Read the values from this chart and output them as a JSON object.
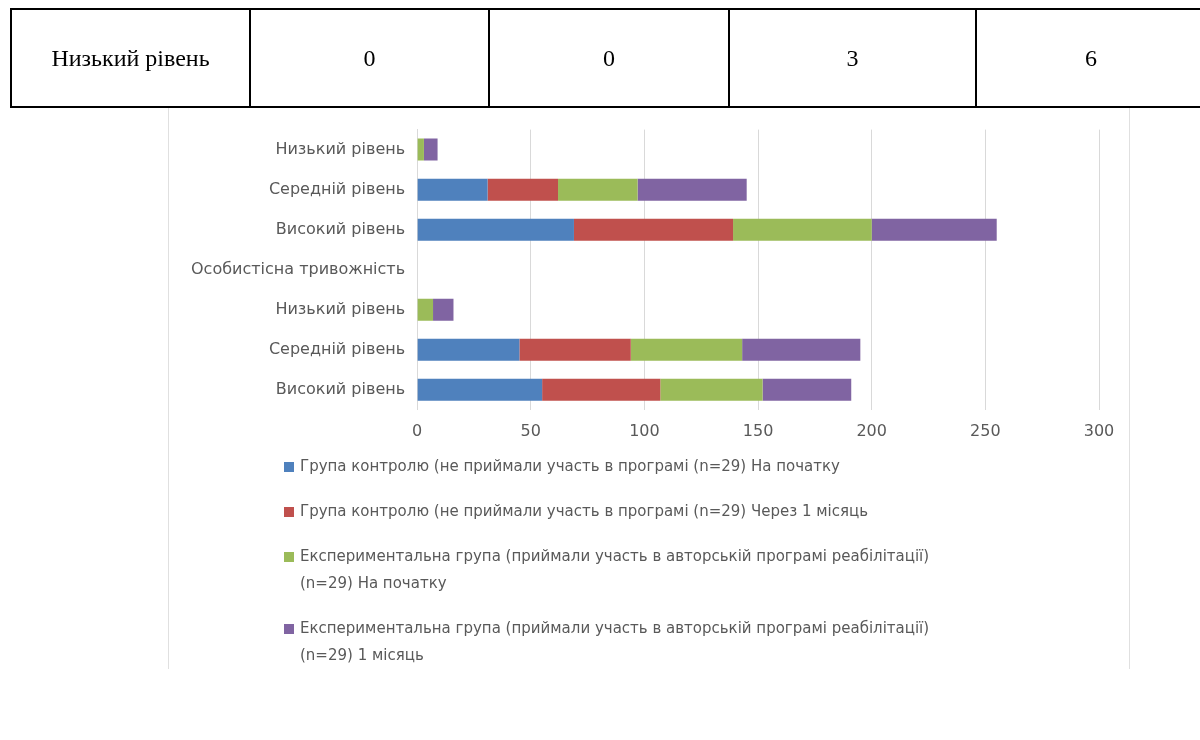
{
  "chart_data": {
    "type": "bar",
    "orientation": "horizontal",
    "stacked": true,
    "categories": [
      "Низький рівень",
      "Середній рівень",
      "Високий рівень",
      "Особистісна тривожність",
      "Низький рівень",
      "Середній рівень",
      "Високий рівень"
    ],
    "series": [
      {
        "name": "Група контролю (не приймали участь в програмі (n=29) На початку",
        "color": "#4f81bd",
        "values": [
          0,
          31,
          69,
          null,
          0,
          45,
          55
        ]
      },
      {
        "name": "Група контролю (не приймали участь в програмі (n=29) Через 1 місяць",
        "color": "#c0504d",
        "values": [
          0,
          31,
          70,
          null,
          0,
          49,
          52
        ]
      },
      {
        "name": "Експериментальна група (приймали участь в авторській програмі реабілітації) (n=29) На початку",
        "color": "#9bbb59",
        "values": [
          3,
          35,
          61,
          null,
          7,
          49,
          45
        ]
      },
      {
        "name": "Експериментальна група (приймали участь в авторській програмі реабілітації) (n=29) 1 місяць",
        "color": "#8064a2",
        "values": [
          6,
          48,
          55,
          null,
          9,
          52,
          39
        ]
      }
    ],
    "xlim": [
      0,
      300
    ],
    "xticks": [
      0,
      50,
      100,
      150,
      200,
      250,
      300
    ],
    "grid": "x",
    "legend": "bottom",
    "annotations": [
      "Низький рівень",
      "0",
      "0",
      "3",
      "6"
    ]
  }
}
